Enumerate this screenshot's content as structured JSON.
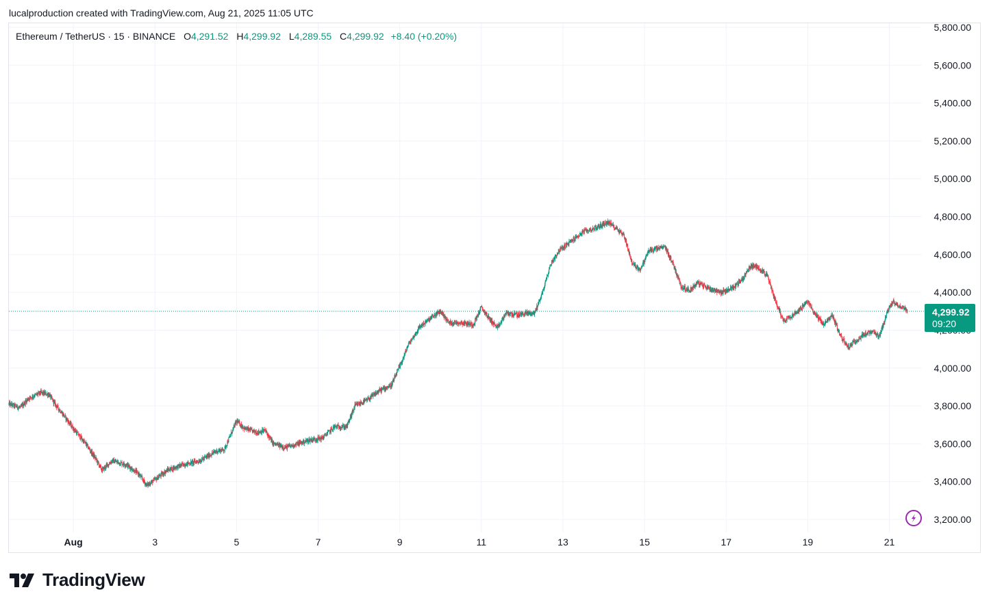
{
  "header": {
    "attribution": "lucalproduction created with TradingView.com, Aug 21, 2025 11:05 UTC"
  },
  "legend": {
    "symbol": "Ethereum / TetherUS · 15 · BINANCE",
    "open_label": "O",
    "open": "4,291.52",
    "high_label": "H",
    "high": "4,299.92",
    "low_label": "L",
    "low": "4,289.55",
    "close_label": "C",
    "close": "4,299.92",
    "change": "+8.40 (+0.20%)"
  },
  "price_tag": {
    "price": "4,299.92",
    "countdown": "09:20",
    "color": "#089981"
  },
  "footer": {
    "brand": "TradingView"
  },
  "colors": {
    "up": "#089981",
    "down": "#f23645",
    "grid": "#f0f3fa",
    "axis_text": "#131722",
    "lightning": "#9c27b0"
  },
  "icons": {
    "lightning": "lightning-icon",
    "logo": "tradingview-logo-icon"
  },
  "chart_data": {
    "type": "candlestick",
    "interval": "15",
    "y_axis": {
      "ticks": [
        "3,200.00",
        "3,400.00",
        "3,600.00",
        "3,800.00",
        "4,000.00",
        "4,200.00",
        "4,400.00",
        "4,600.00",
        "4,800.00",
        "5,000.00",
        "5,200.00",
        "5,400.00",
        "5,600.00",
        "5,800.00"
      ],
      "tick_values": [
        3200,
        3400,
        3600,
        3800,
        4000,
        4200,
        4400,
        4600,
        4800,
        5000,
        5200,
        5400,
        5600,
        5800
      ],
      "range": [
        3200,
        5800
      ],
      "side": "right"
    },
    "x_axis": {
      "ticks": [
        {
          "label": "Aug",
          "day": 1,
          "bold": true
        },
        {
          "label": "3",
          "day": 3
        },
        {
          "label": "5",
          "day": 5
        },
        {
          "label": "7",
          "day": 7
        },
        {
          "label": "9",
          "day": 9
        },
        {
          "label": "11",
          "day": 11
        },
        {
          "label": "13",
          "day": 13
        },
        {
          "label": "15",
          "day": 15
        },
        {
          "label": "17",
          "day": 17
        },
        {
          "label": "19",
          "day": 19
        },
        {
          "label": "21",
          "day": 21
        }
      ],
      "range_days": [
        -0.58,
        21.78
      ]
    },
    "last_price": 4299.92,
    "price_path": [
      [
        -0.58,
        3810
      ],
      [
        -0.3,
        3790
      ],
      [
        -0.1,
        3840
      ],
      [
        0.2,
        3870
      ],
      [
        0.4,
        3860
      ],
      [
        0.55,
        3810
      ],
      [
        0.8,
        3740
      ],
      [
        1.0,
        3680
      ],
      [
        1.3,
        3600
      ],
      [
        1.55,
        3520
      ],
      [
        1.7,
        3460
      ],
      [
        1.95,
        3510
      ],
      [
        2.3,
        3490
      ],
      [
        2.6,
        3440
      ],
      [
        2.8,
        3380
      ],
      [
        3.0,
        3410
      ],
      [
        3.3,
        3460
      ],
      [
        3.7,
        3490
      ],
      [
        4.1,
        3510
      ],
      [
        4.5,
        3560
      ],
      [
        4.7,
        3570
      ],
      [
        4.9,
        3670
      ],
      [
        5.0,
        3720
      ],
      [
        5.2,
        3680
      ],
      [
        5.5,
        3660
      ],
      [
        5.7,
        3670
      ],
      [
        5.9,
        3600
      ],
      [
        6.2,
        3580
      ],
      [
        6.5,
        3600
      ],
      [
        6.8,
        3620
      ],
      [
        7.1,
        3630
      ],
      [
        7.4,
        3690
      ],
      [
        7.7,
        3690
      ],
      [
        7.9,
        3800
      ],
      [
        8.2,
        3830
      ],
      [
        8.5,
        3880
      ],
      [
        8.8,
        3910
      ],
      [
        9.0,
        4010
      ],
      [
        9.1,
        4060
      ],
      [
        9.2,
        4120
      ],
      [
        9.5,
        4220
      ],
      [
        9.8,
        4270
      ],
      [
        10.0,
        4300
      ],
      [
        10.2,
        4240
      ],
      [
        10.5,
        4240
      ],
      [
        10.8,
        4230
      ],
      [
        11.0,
        4320
      ],
      [
        11.2,
        4260
      ],
      [
        11.4,
        4210
      ],
      [
        11.6,
        4290
      ],
      [
        11.9,
        4280
      ],
      [
        12.1,
        4290
      ],
      [
        12.3,
        4290
      ],
      [
        12.5,
        4400
      ],
      [
        12.7,
        4550
      ],
      [
        12.9,
        4620
      ],
      [
        13.2,
        4670
      ],
      [
        13.5,
        4720
      ],
      [
        13.8,
        4740
      ],
      [
        14.1,
        4770
      ],
      [
        14.3,
        4740
      ],
      [
        14.5,
        4700
      ],
      [
        14.7,
        4550
      ],
      [
        14.9,
        4520
      ],
      [
        15.1,
        4620
      ],
      [
        15.5,
        4640
      ],
      [
        15.7,
        4550
      ],
      [
        15.9,
        4430
      ],
      [
        16.1,
        4410
      ],
      [
        16.3,
        4450
      ],
      [
        16.6,
        4420
      ],
      [
        16.9,
        4400
      ],
      [
        17.2,
        4430
      ],
      [
        17.4,
        4470
      ],
      [
        17.6,
        4540
      ],
      [
        17.8,
        4530
      ],
      [
        18.0,
        4490
      ],
      [
        18.2,
        4360
      ],
      [
        18.4,
        4250
      ],
      [
        18.7,
        4290
      ],
      [
        19.0,
        4350
      ],
      [
        19.2,
        4280
      ],
      [
        19.4,
        4230
      ],
      [
        19.6,
        4280
      ],
      [
        19.8,
        4170
      ],
      [
        20.0,
        4110
      ],
      [
        20.2,
        4150
      ],
      [
        20.4,
        4180
      ],
      [
        20.6,
        4190
      ],
      [
        20.75,
        4160
      ],
      [
        20.95,
        4300
      ],
      [
        21.1,
        4350
      ],
      [
        21.3,
        4320
      ],
      [
        21.5,
        4300
      ],
      [
        21.78,
        4300
      ]
    ]
  }
}
